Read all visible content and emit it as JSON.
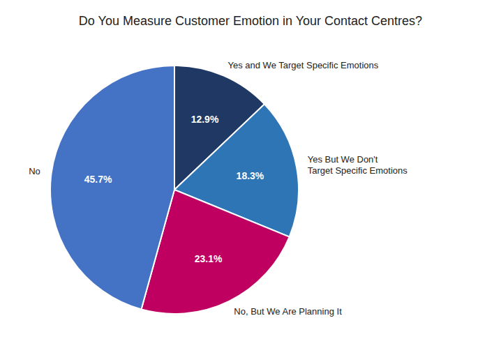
{
  "chart_data": {
    "type": "pie",
    "title": "Do You Measure Customer Emotion in Your Contact Centres?",
    "categories": [
      "Yes and We Target Specific Emotions",
      "Yes But We Don't\nTarget Specific Emotions",
      "No, But We Are Planning It",
      "No"
    ],
    "values": [
      12.9,
      18.3,
      23.1,
      45.7
    ],
    "value_labels": [
      "12.9%",
      "18.3%",
      "23.1%",
      "45.7%"
    ],
    "colors": [
      "#1f3864",
      "#2e75b6",
      "#c00060",
      "#4472c4"
    ],
    "data_labels": true
  }
}
